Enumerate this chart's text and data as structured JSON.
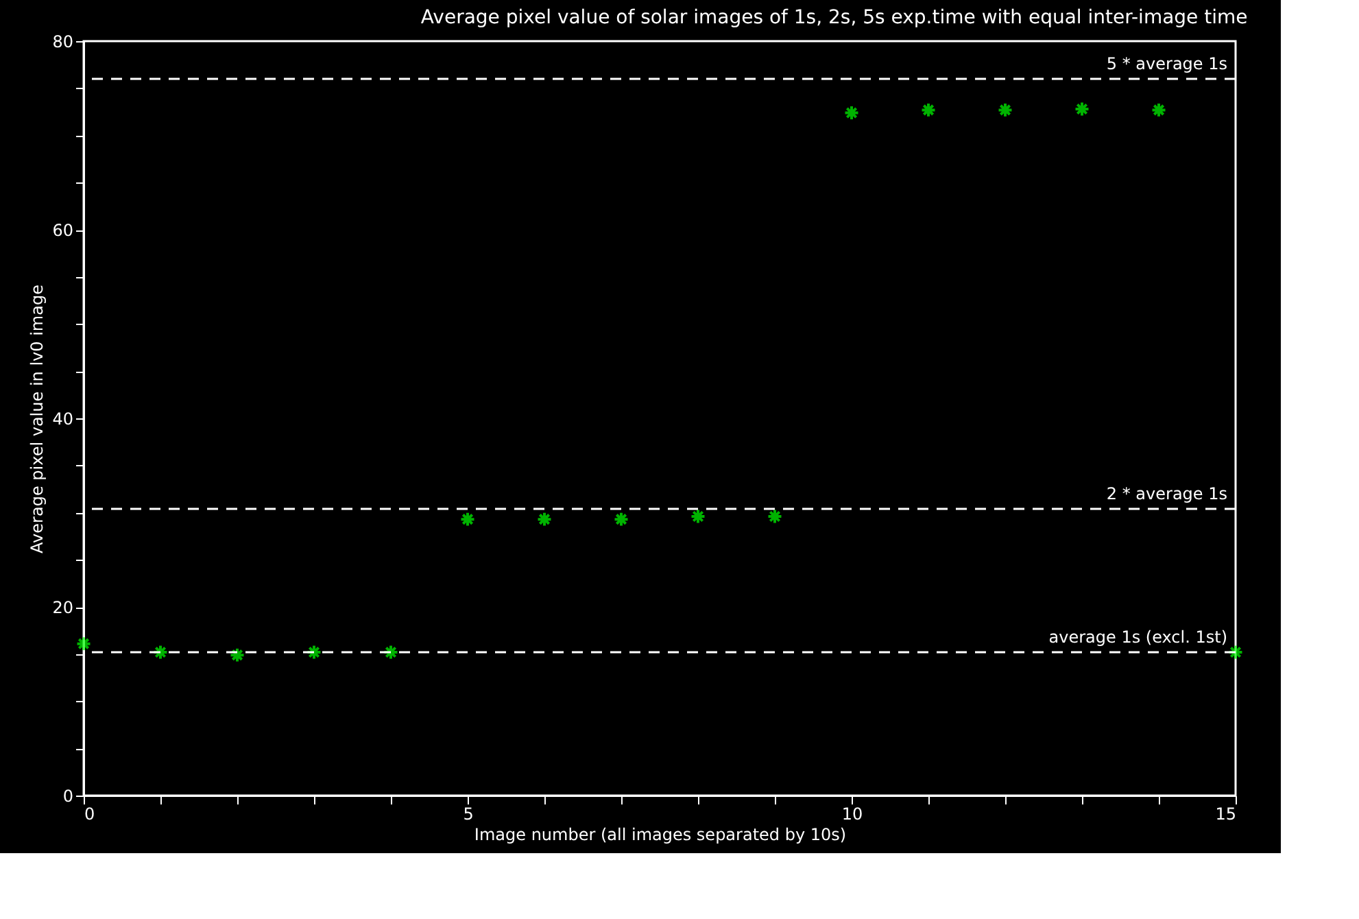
{
  "chart_data": {
    "type": "scatter",
    "title": "Average pixel value of solar images of 1s, 2s, 5s exp.time with equal inter-image time",
    "xlabel": "Image number (all images separated by 10s)",
    "ylabel": "Average pixel value in lv0 image",
    "x": [
      0,
      1,
      2,
      3,
      4,
      5,
      6,
      7,
      8,
      9,
      10,
      11,
      12,
      13,
      14,
      15
    ],
    "series": [
      {
        "color": "#00ff00",
        "values": [
          16.1,
          15.2,
          14.9,
          15.2,
          15.2,
          29.3,
          29.3,
          29.3,
          29.6,
          29.6,
          72.4,
          72.7,
          72.7,
          72.8,
          72.7,
          15.2
        ]
      }
    ],
    "marker": "cross",
    "xlim": [
      0,
      15
    ],
    "xticks": [
      0,
      {
        "value": 1,
        "label": null
      },
      {
        "value": 2,
        "label": null
      },
      {
        "value": 3,
        "label": null
      },
      {
        "value": 4,
        "label": null
      },
      5,
      {
        "value": 6,
        "label": null
      },
      {
        "value": 7,
        "label": null
      },
      {
        "value": 8,
        "label": null
      },
      {
        "value": 9,
        "label": null
      },
      10,
      {
        "value": 11,
        "label": null
      },
      {
        "value": 12,
        "label": null
      },
      {
        "value": 13,
        "label": null
      },
      {
        "value": 14,
        "label": null
      },
      15
    ],
    "ylim": [
      0,
      80
    ],
    "yticks": [
      0,
      {
        "value": 5,
        "label": null
      },
      {
        "value": 10,
        "label": null
      },
      {
        "value": 15,
        "label": null
      },
      20,
      {
        "value": 25,
        "label": null
      },
      {
        "value": 30,
        "label": null
      },
      {
        "value": 35,
        "label": null
      },
      40,
      {
        "value": 45,
        "label": null
      },
      {
        "value": 50,
        "label": null
      },
      {
        "value": 55,
        "label": null
      },
      60,
      {
        "value": 65,
        "label": null
      },
      {
        "value": 70,
        "label": null
      },
      {
        "value": 75,
        "label": null
      },
      80
    ],
    "ref_lines": [
      {
        "axis": "y",
        "value": 76,
        "label": "5 * average 1s",
        "color": "#ffffff",
        "line_style": "dashed"
      },
      {
        "axis": "y",
        "value": 30.4,
        "label": "2 * average 1s",
        "color": "#ffffff",
        "line_style": "dashed"
      },
      {
        "axis": "y",
        "value": 15.2,
        "label": "average 1s (excl. 1st)",
        "color": "#ffffff",
        "line_style": "dashed"
      }
    ],
    "grid": false
  }
}
